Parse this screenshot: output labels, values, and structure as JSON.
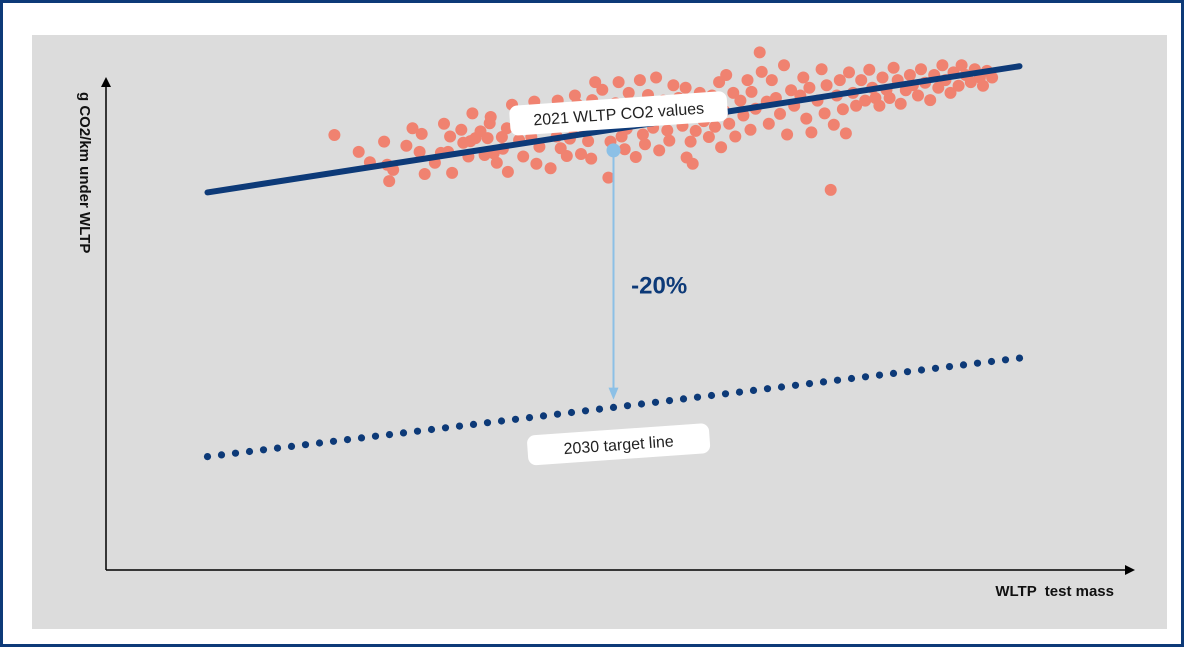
{
  "chart_data": {
    "type": "scatter",
    "title": "",
    "xlabel": "WLTP  test mass",
    "ylabel": "g CO2/km under WLTP",
    "xlim": [
      0,
      100
    ],
    "ylim": [
      0,
      100
    ],
    "grid": false,
    "series": [
      {
        "name": "2021 WLTP CO2 values",
        "kind": "scatter",
        "points": [
          [
            22.5,
            84.8
          ],
          [
            24.9,
            81.5
          ],
          [
            26.0,
            79.5
          ],
          [
            27.4,
            83.5
          ],
          [
            27.7,
            79.0
          ],
          [
            27.9,
            75.8
          ],
          [
            28.3,
            78.0
          ],
          [
            29.6,
            82.7
          ],
          [
            30.2,
            86.1
          ],
          [
            30.9,
            81.5
          ],
          [
            31.1,
            85.0
          ],
          [
            31.4,
            77.2
          ],
          [
            32.4,
            79.4
          ],
          [
            33.0,
            81.3
          ],
          [
            33.3,
            87.0
          ],
          [
            33.7,
            81.5
          ],
          [
            33.9,
            84.5
          ],
          [
            34.1,
            77.4
          ],
          [
            35.0,
            85.8
          ],
          [
            35.2,
            83.3
          ],
          [
            35.7,
            80.6
          ],
          [
            35.9,
            83.6
          ],
          [
            36.1,
            89.0
          ],
          [
            36.4,
            84.2
          ],
          [
            36.9,
            85.5
          ],
          [
            37.3,
            80.9
          ],
          [
            37.6,
            84.2
          ],
          [
            37.8,
            87.1
          ],
          [
            37.9,
            88.3
          ],
          [
            38.2,
            81.2
          ],
          [
            38.5,
            79.4
          ],
          [
            39.0,
            84.4
          ],
          [
            39.1,
            82.1
          ],
          [
            39.5,
            86.1
          ],
          [
            39.6,
            77.6
          ],
          [
            40.0,
            90.7
          ],
          [
            40.4,
            88.4
          ],
          [
            40.7,
            83.8
          ],
          [
            40.9,
            87.0
          ],
          [
            41.1,
            80.6
          ],
          [
            41.5,
            89.3
          ],
          [
            41.9,
            84.4
          ],
          [
            42.0,
            86.5
          ],
          [
            42.2,
            91.3
          ],
          [
            42.4,
            79.2
          ],
          [
            42.7,
            82.5
          ],
          [
            43.0,
            87.9
          ],
          [
            43.3,
            89.1
          ],
          [
            43.8,
            78.3
          ],
          [
            44.1,
            86.3
          ],
          [
            44.4,
            84.5
          ],
          [
            44.5,
            91.5
          ],
          [
            44.8,
            82.2
          ],
          [
            45.1,
            88.1
          ],
          [
            45.4,
            80.7
          ],
          [
            45.7,
            84.1
          ],
          [
            46.0,
            86.2
          ],
          [
            46.2,
            92.5
          ],
          [
            46.4,
            90.8
          ],
          [
            46.8,
            81.1
          ],
          [
            47.1,
            87.8
          ],
          [
            47.2,
            85.6
          ],
          [
            47.5,
            83.6
          ],
          [
            47.8,
            80.2
          ],
          [
            47.9,
            91.6
          ],
          [
            48.2,
            95.1
          ],
          [
            48.5,
            88.5
          ],
          [
            48.9,
            93.6
          ],
          [
            49.2,
            86.5
          ],
          [
            49.5,
            76.5
          ],
          [
            49.7,
            83.5
          ],
          [
            50.0,
            89.5
          ],
          [
            50.2,
            91.0
          ],
          [
            50.5,
            95.1
          ],
          [
            50.8,
            84.5
          ],
          [
            51.1,
            82.0
          ],
          [
            51.3,
            86.0
          ],
          [
            51.5,
            93.0
          ],
          [
            51.9,
            90.1
          ],
          [
            52.2,
            80.5
          ],
          [
            52.3,
            87.5
          ],
          [
            52.6,
            95.5
          ],
          [
            52.9,
            84.9
          ],
          [
            53.1,
            83.0
          ],
          [
            53.4,
            92.6
          ],
          [
            53.7,
            88.1
          ],
          [
            53.9,
            86.2
          ],
          [
            54.2,
            96.0
          ],
          [
            54.5,
            81.8
          ],
          [
            54.7,
            89.9
          ],
          [
            54.9,
            91.5
          ],
          [
            55.3,
            85.7
          ],
          [
            55.5,
            83.7
          ],
          [
            55.9,
            94.5
          ],
          [
            56.1,
            88.5
          ],
          [
            56.4,
            92.0
          ],
          [
            56.8,
            86.6
          ],
          [
            57.1,
            94.0
          ],
          [
            57.2,
            80.4
          ],
          [
            57.6,
            83.5
          ],
          [
            57.8,
            79.2
          ],
          [
            58.1,
            85.6
          ],
          [
            58.4,
            89.9
          ],
          [
            58.5,
            93.0
          ],
          [
            58.9,
            87.5
          ],
          [
            59.2,
            90.9
          ],
          [
            59.4,
            84.4
          ],
          [
            59.7,
            92.5
          ],
          [
            60.0,
            86.4
          ],
          [
            60.4,
            95.1
          ],
          [
            60.6,
            82.4
          ],
          [
            60.9,
            89.5
          ],
          [
            61.1,
            96.5
          ],
          [
            61.4,
            87.0
          ],
          [
            61.8,
            93.0
          ],
          [
            62.0,
            84.5
          ],
          [
            62.5,
            91.5
          ],
          [
            62.8,
            88.6
          ],
          [
            63.2,
            95.5
          ],
          [
            63.5,
            85.8
          ],
          [
            63.6,
            93.2
          ],
          [
            64.0,
            89.9
          ],
          [
            64.4,
            100.9
          ],
          [
            64.6,
            97.1
          ],
          [
            65.1,
            91.3
          ],
          [
            65.3,
            87.0
          ],
          [
            65.6,
            95.5
          ],
          [
            66.0,
            92.0
          ],
          [
            66.4,
            88.9
          ],
          [
            66.8,
            98.4
          ],
          [
            67.1,
            84.9
          ],
          [
            67.5,
            93.5
          ],
          [
            67.8,
            90.5
          ],
          [
            68.4,
            92.5
          ],
          [
            68.7,
            96.0
          ],
          [
            69.0,
            88.0
          ],
          [
            69.3,
            94.0
          ],
          [
            69.5,
            85.3
          ],
          [
            70.1,
            91.5
          ],
          [
            70.5,
            97.6
          ],
          [
            70.8,
            89.0
          ],
          [
            71.0,
            94.5
          ],
          [
            71.4,
            74.1
          ],
          [
            71.7,
            86.8
          ],
          [
            72.0,
            92.5
          ],
          [
            72.3,
            95.5
          ],
          [
            72.6,
            89.8
          ],
          [
            72.9,
            85.1
          ],
          [
            73.2,
            97.0
          ],
          [
            73.6,
            93.0
          ],
          [
            73.9,
            90.5
          ],
          [
            74.4,
            95.5
          ],
          [
            74.8,
            91.5
          ],
          [
            75.2,
            97.5
          ],
          [
            75.5,
            94.0
          ],
          [
            75.8,
            92.0
          ],
          [
            76.2,
            90.5
          ],
          [
            76.5,
            96.0
          ],
          [
            76.9,
            93.6
          ],
          [
            77.2,
            92.0
          ],
          [
            77.6,
            97.9
          ],
          [
            78.0,
            95.5
          ],
          [
            78.3,
            90.9
          ],
          [
            78.8,
            93.5
          ],
          [
            79.2,
            96.5
          ],
          [
            79.5,
            94.5
          ],
          [
            80.0,
            92.5
          ],
          [
            80.3,
            97.6
          ],
          [
            80.7,
            95.0
          ],
          [
            81.2,
            91.6
          ],
          [
            81.6,
            96.5
          ],
          [
            82.0,
            94.0
          ],
          [
            82.4,
            98.4
          ],
          [
            82.7,
            95.5
          ],
          [
            83.2,
            93.0
          ],
          [
            83.5,
            97.0
          ],
          [
            84.0,
            94.4
          ],
          [
            84.3,
            98.4
          ],
          [
            84.7,
            96.5
          ],
          [
            85.2,
            95.1
          ],
          [
            85.6,
            97.6
          ],
          [
            86.1,
            96.0
          ],
          [
            86.4,
            94.4
          ],
          [
            86.8,
            97.3
          ],
          [
            87.3,
            96.0
          ]
        ]
      },
      {
        "name": "",
        "kind": "line",
        "style": "solid",
        "points": [
          [
            10.0,
            73.6
          ],
          [
            90.0,
            98.2
          ]
        ]
      },
      {
        "name": "2030 target line",
        "kind": "line",
        "style": "dotted",
        "points": [
          [
            10.0,
            22.1
          ],
          [
            90.0,
            41.3
          ]
        ]
      }
    ],
    "annotations": [
      {
        "text": "2021 WLTP CO2 values",
        "at": [
          50.5,
          89.0
        ]
      },
      {
        "text": "2030 target line",
        "at": [
          50.5,
          24.5
        ]
      },
      {
        "text": "-20%",
        "at": [
          54.5,
          55.5
        ]
      }
    ],
    "reduction_arrow": {
      "x": 50.0,
      "from_y": 81.8,
      "to_y": 33.2,
      "label": "-20%"
    },
    "colors": {
      "frame": "#0d3a78",
      "background": "#dcdcdc",
      "scatter": "#f08270",
      "trend_line": "#0d3a78",
      "target_line": "#0d3a78",
      "arrow": "#8cc0e6",
      "pct_label": "#0d3a78",
      "label_box": "#ffffff"
    },
    "legend": "none",
    "axes_arrows": true
  }
}
